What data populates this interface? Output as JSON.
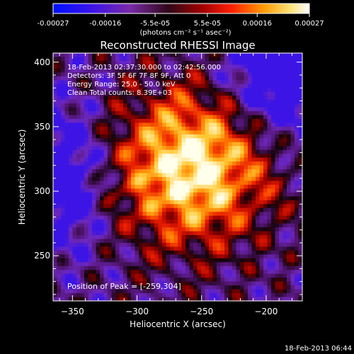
{
  "colorbar": {
    "ticks": [
      "-0.00027",
      "-0.00016",
      "-5.5e-05",
      "5.5e-05",
      "0.00016",
      "0.00027"
    ],
    "tick_values": [
      -0.00027,
      -0.00016,
      -5.5e-05,
      5.5e-05,
      0.00016,
      0.00027
    ],
    "range": [
      -0.00027,
      0.00027
    ],
    "units": "(photons cm⁻² s⁻¹ asec⁻²)",
    "colors": [
      "#0010ff",
      "#5a1ad6",
      "#7a2aa8",
      "#3a0a18",
      "#b00000",
      "#ff2000",
      "#ff9a00",
      "#ffe066",
      "#ffffff"
    ]
  },
  "chart_data": {
    "type": "heatmap",
    "title": "Reconstructed RHESSI Image",
    "xlabel": "Heliocentric X (arcsec)",
    "ylabel": "Heliocentric Y (arcsec)",
    "xlim": [
      -365,
      -172
    ],
    "ylim": [
      215,
      407
    ],
    "xticks": [
      -350,
      -300,
      -250,
      -200
    ],
    "yticks": [
      250,
      300,
      350,
      400
    ],
    "peak": {
      "x": -259,
      "y": 304
    },
    "annotations": [
      "18-Feb-2013 02:37:30.000 to 02:42:56.000",
      "Detectors: 3F 5F 6F 7F 8F 9F, Att 0",
      "Energy Range: 25.0 - 50.0 keV",
      "Clean    Total counts: 8.39E+03"
    ],
    "peak_label": "Position of Peak = [-259,304]"
  },
  "footer": {
    "timestamp": "18-Feb-2013 06:44"
  }
}
